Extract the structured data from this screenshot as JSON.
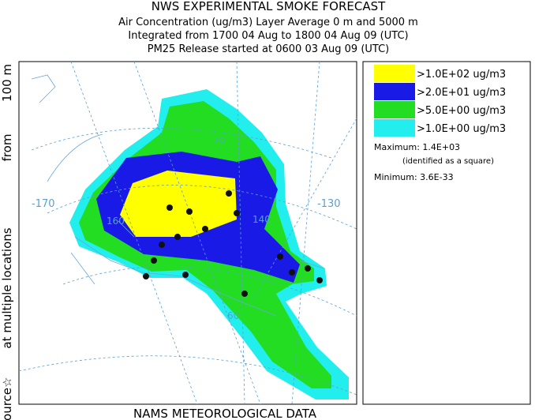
{
  "header": {
    "title": "NWS EXPERIMENTAL SMOKE FORECAST",
    "lines": [
      "Air Concentration (ug/m3) Layer Average    0 m and  5000 m",
      "Integrated from 1700 04 Aug to 1800 04 Aug 09 (UTC)",
      "PM25 Release started at 0600 03 Aug 09 (UTC)"
    ]
  },
  "side_label": [
    "Source☆",
    "at multiple locations",
    "from",
    "100 m"
  ],
  "footer": "NAMS METEOROLOGICAL DATA",
  "map_labels": [
    "-170",
    "-130",
    "70",
    "160",
    "140",
    "60"
  ],
  "legend": {
    "items": [
      {
        "label": ">1.0E+02 ug/m3",
        "color": "#ffff00"
      },
      {
        "label": ">2.0E+01 ug/m3",
        "color": "#1a1ae6"
      },
      {
        "label": ">5.0E+00 ug/m3",
        "color": "#22dd22"
      },
      {
        "label": ">1.0E+00 ug/m3",
        "color": "#22eeee"
      }
    ]
  },
  "stats": {
    "maximum": "Maximum: 1.4E+03",
    "maximum_note": "(identified as a square)",
    "minimum": "Minimum: 3.6E-33"
  }
}
